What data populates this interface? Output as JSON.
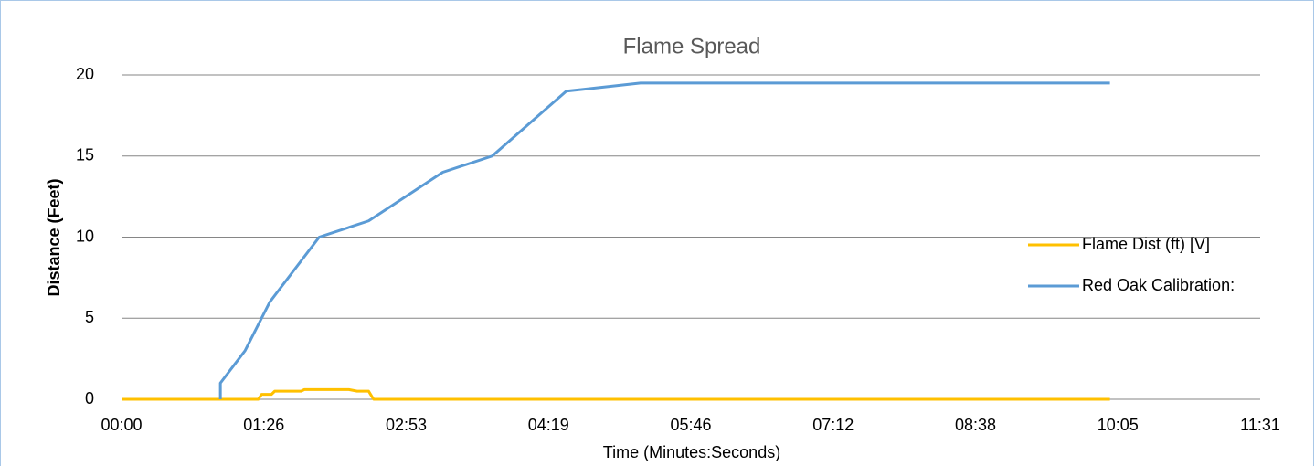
{
  "chart_data": {
    "type": "line",
    "title": "Flame Spread",
    "xlabel": "Time (Minutes:Seconds)",
    "ylabel": "Distance (Feet)",
    "xlim": [
      0,
      691.2
    ],
    "xticks": [
      {
        "value": 0,
        "label": "00:00"
      },
      {
        "value": 86.4,
        "label": "01:26"
      },
      {
        "value": 172.8,
        "label": "02:53"
      },
      {
        "value": 259.2,
        "label": "04:19"
      },
      {
        "value": 345.6,
        "label": "05:46"
      },
      {
        "value": 432,
        "label": "07:12"
      },
      {
        "value": 518.4,
        "label": "08:38"
      },
      {
        "value": 604.8,
        "label": "10:05"
      },
      {
        "value": 691.2,
        "label": "11:31"
      }
    ],
    "ylim": [
      0,
      20
    ],
    "yticks": [
      0,
      5,
      10,
      15,
      20
    ],
    "grid": true,
    "legend": "right",
    "series": [
      {
        "name": "Flame Dist (ft) [V]",
        "color": "#ffc000",
        "x": [
          0,
          83,
          85,
          91,
          93,
          99,
          109,
          111,
          138,
          143,
          150,
          153,
          600
        ],
        "values": [
          0,
          0,
          0.3,
          0.3,
          0.5,
          0.5,
          0.5,
          0.6,
          0.6,
          0.5,
          0.5,
          0,
          0
        ]
      },
      {
        "name": "Red Oak Calibration:",
        "color": "#5b9bd5",
        "x": [
          60,
          60,
          75,
          90,
          120,
          150,
          195,
          225,
          270,
          315,
          600
        ],
        "values": [
          0,
          1,
          3,
          6,
          10,
          11,
          14,
          15,
          19,
          19.5,
          19.5
        ]
      }
    ]
  }
}
